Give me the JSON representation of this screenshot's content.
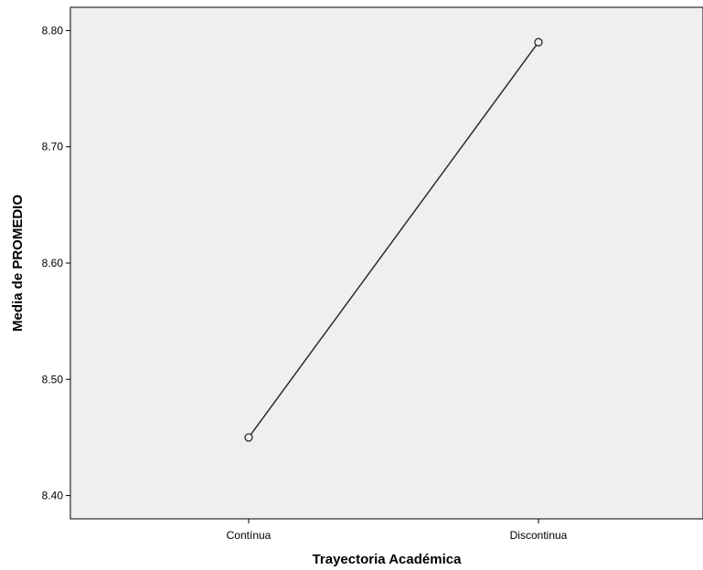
{
  "chart_data": {
    "type": "line",
    "categories": [
      "Contínua",
      "Discontinua"
    ],
    "series": [
      {
        "values": [
          8.45,
          8.79
        ]
      }
    ],
    "xlabel": "Trayectoria Académica",
    "ylabel": "Media de PROMEDIO",
    "ylim": [
      8.38,
      8.82
    ],
    "yticks": [
      8.4,
      8.5,
      8.6,
      8.7,
      8.8
    ],
    "ytick_labels": [
      "8.40",
      "8.50",
      "8.60",
      "8.70",
      "8.80"
    ],
    "grid": false,
    "markers": "hollow-circle",
    "colors": {
      "plot_background": "#efefef",
      "line": "#2b2b2b",
      "axis": "#000000"
    }
  }
}
